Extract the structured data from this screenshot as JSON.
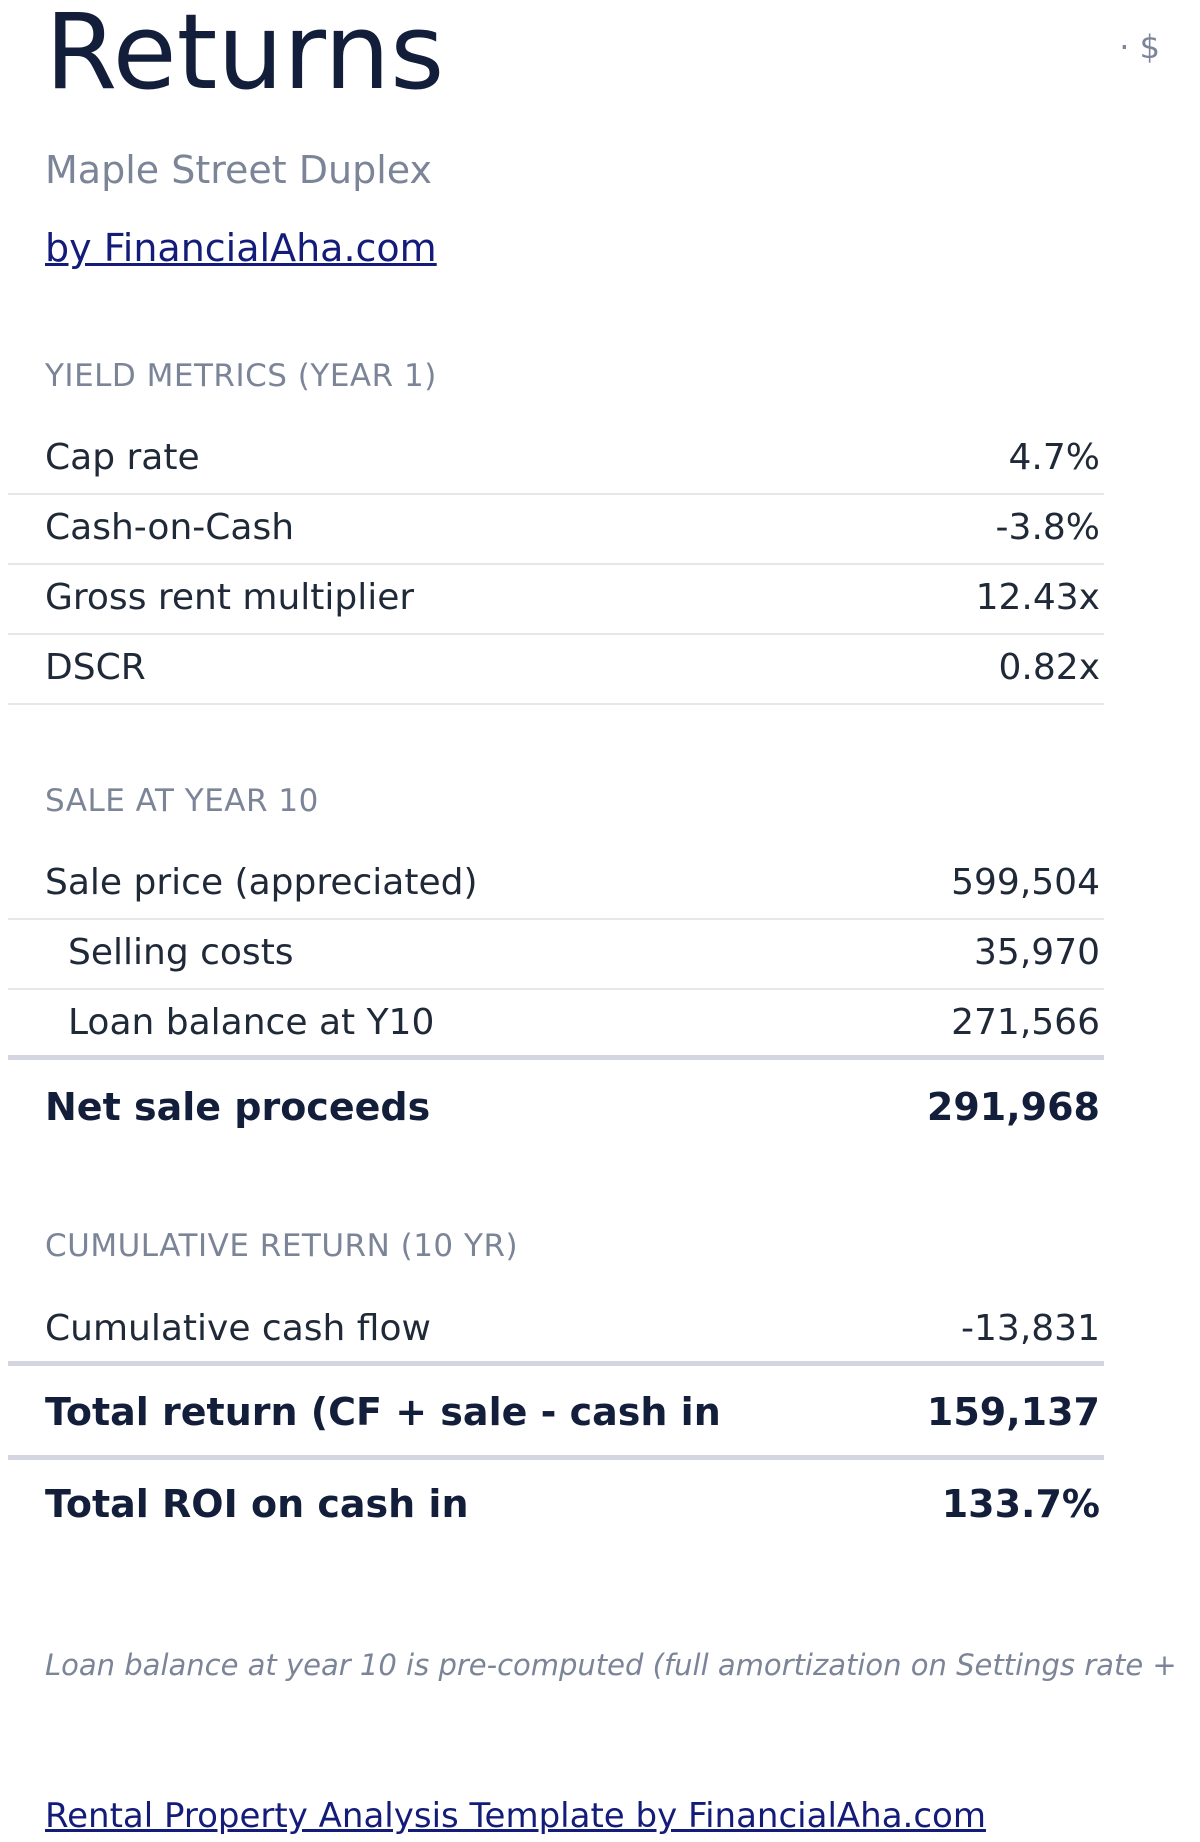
{
  "header": {
    "title": "Returns",
    "currency_indicator": "· $",
    "property_name": "Maple Street Duplex",
    "byline": "by FinancialAha.com"
  },
  "yield_metrics": {
    "heading": "YIELD METRICS (YEAR 1)",
    "rows": [
      {
        "label": "Cap rate",
        "value": "4.7%"
      },
      {
        "label": "Cash-on-Cash",
        "value": "-3.8%"
      },
      {
        "label": "Gross rent multiplier",
        "value": "12.43x"
      },
      {
        "label": "DSCR",
        "value": "0.82x"
      }
    ]
  },
  "sale": {
    "heading": "SALE AT YEAR 10",
    "rows": [
      {
        "label": "Sale price (appreciated)",
        "value": "599,504"
      },
      {
        "label": "Selling costs",
        "value": "35,970"
      },
      {
        "label": "Loan balance at Y10",
        "value": "271,566"
      }
    ],
    "total": {
      "label": "Net sale proceeds",
      "value": "291,968"
    }
  },
  "cumulative": {
    "heading": "CUMULATIVE RETURN (10 YR)",
    "rows": [
      {
        "label": "Cumulative cash flow",
        "value": "-13,831"
      }
    ],
    "total_return": {
      "label": "Total return (CF + sale - cash in",
      "value": "159,137"
    },
    "total_roi": {
      "label": "Total ROI on cash in",
      "value": "133.7%"
    }
  },
  "footnote": "Loan balance at year 10 is pre-computed (full amortization on Settings rate +",
  "footer_link": "Rental Property Analysis Template by FinancialAha.com"
}
